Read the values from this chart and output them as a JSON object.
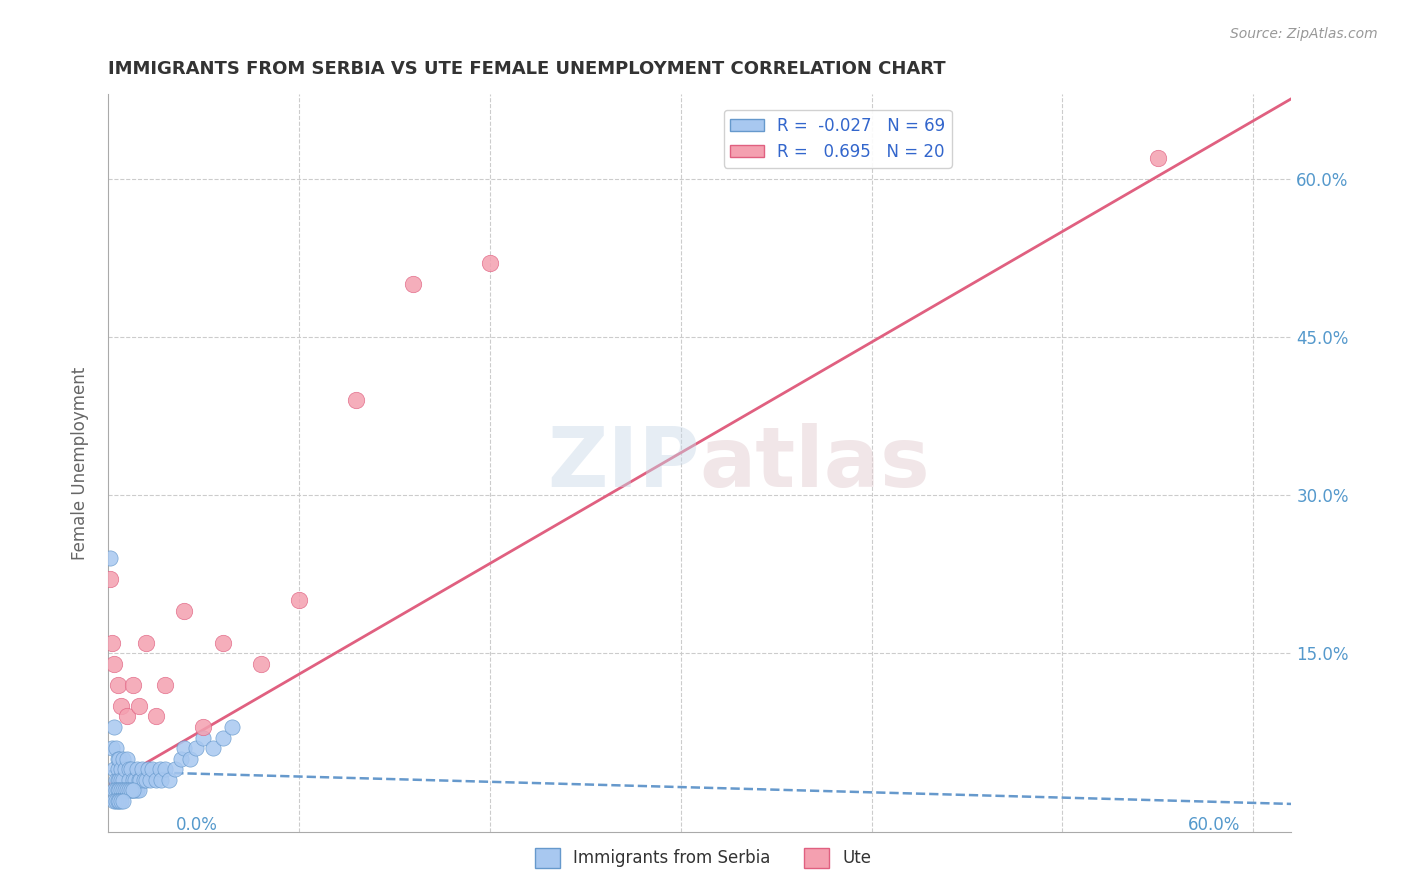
{
  "title": "IMMIGRANTS FROM SERBIA VS UTE FEMALE UNEMPLOYMENT CORRELATION CHART",
  "source_text": "Source: ZipAtlas.com",
  "ylabel": "Female Unemployment",
  "y_tick_labels": [
    "15.0%",
    "30.0%",
    "45.0%",
    "60.0%"
  ],
  "xlim": [
    0.0,
    0.62
  ],
  "ylim": [
    -0.02,
    0.68
  ],
  "serbia_R": -0.027,
  "serbia_N": 69,
  "ute_R": 0.695,
  "ute_N": 20,
  "serbia_color": "#a8c8f0",
  "ute_color": "#f4a0b0",
  "serbia_line_color": "#6699cc",
  "ute_line_color": "#e06080",
  "title_color": "#333333",
  "axis_label_color": "#5599cc",
  "grid_color": "#cccccc",
  "serbia_slope": -0.05,
  "serbia_intercept": 0.038,
  "ute_slope": 1.05,
  "ute_intercept": 0.025,
  "serbia_x": [
    0.001,
    0.002,
    0.003,
    0.003,
    0.004,
    0.004,
    0.005,
    0.005,
    0.005,
    0.006,
    0.006,
    0.007,
    0.007,
    0.008,
    0.008,
    0.009,
    0.009,
    0.01,
    0.01,
    0.011,
    0.011,
    0.012,
    0.012,
    0.013,
    0.013,
    0.014,
    0.014,
    0.015,
    0.015,
    0.016,
    0.016,
    0.017,
    0.018,
    0.019,
    0.02,
    0.021,
    0.022,
    0.023,
    0.025,
    0.027,
    0.028,
    0.03,
    0.032,
    0.035,
    0.038,
    0.04,
    0.043,
    0.046,
    0.05,
    0.055,
    0.06,
    0.065,
    0.003,
    0.004,
    0.005,
    0.006,
    0.007,
    0.008,
    0.009,
    0.01,
    0.011,
    0.012,
    0.013,
    0.003,
    0.004,
    0.005,
    0.006,
    0.007,
    0.008
  ],
  "serbia_y": [
    0.24,
    0.06,
    0.08,
    0.04,
    0.06,
    0.03,
    0.05,
    0.04,
    0.03,
    0.05,
    0.03,
    0.04,
    0.03,
    0.05,
    0.03,
    0.04,
    0.02,
    0.05,
    0.02,
    0.04,
    0.03,
    0.04,
    0.02,
    0.03,
    0.02,
    0.03,
    0.02,
    0.04,
    0.02,
    0.03,
    0.02,
    0.03,
    0.04,
    0.03,
    0.03,
    0.04,
    0.03,
    0.04,
    0.03,
    0.04,
    0.03,
    0.04,
    0.03,
    0.04,
    0.05,
    0.06,
    0.05,
    0.06,
    0.07,
    0.06,
    0.07,
    0.08,
    0.02,
    0.02,
    0.02,
    0.02,
    0.02,
    0.02,
    0.02,
    0.02,
    0.02,
    0.02,
    0.02,
    0.01,
    0.01,
    0.01,
    0.01,
    0.01,
    0.01
  ],
  "ute_x": [
    0.001,
    0.002,
    0.003,
    0.005,
    0.007,
    0.01,
    0.013,
    0.016,
    0.02,
    0.025,
    0.03,
    0.04,
    0.05,
    0.06,
    0.08,
    0.1,
    0.13,
    0.16,
    0.2,
    0.55
  ],
  "ute_y": [
    0.22,
    0.16,
    0.14,
    0.12,
    0.1,
    0.09,
    0.12,
    0.1,
    0.16,
    0.09,
    0.12,
    0.19,
    0.08,
    0.16,
    0.14,
    0.2,
    0.39,
    0.5,
    0.52,
    0.62
  ]
}
